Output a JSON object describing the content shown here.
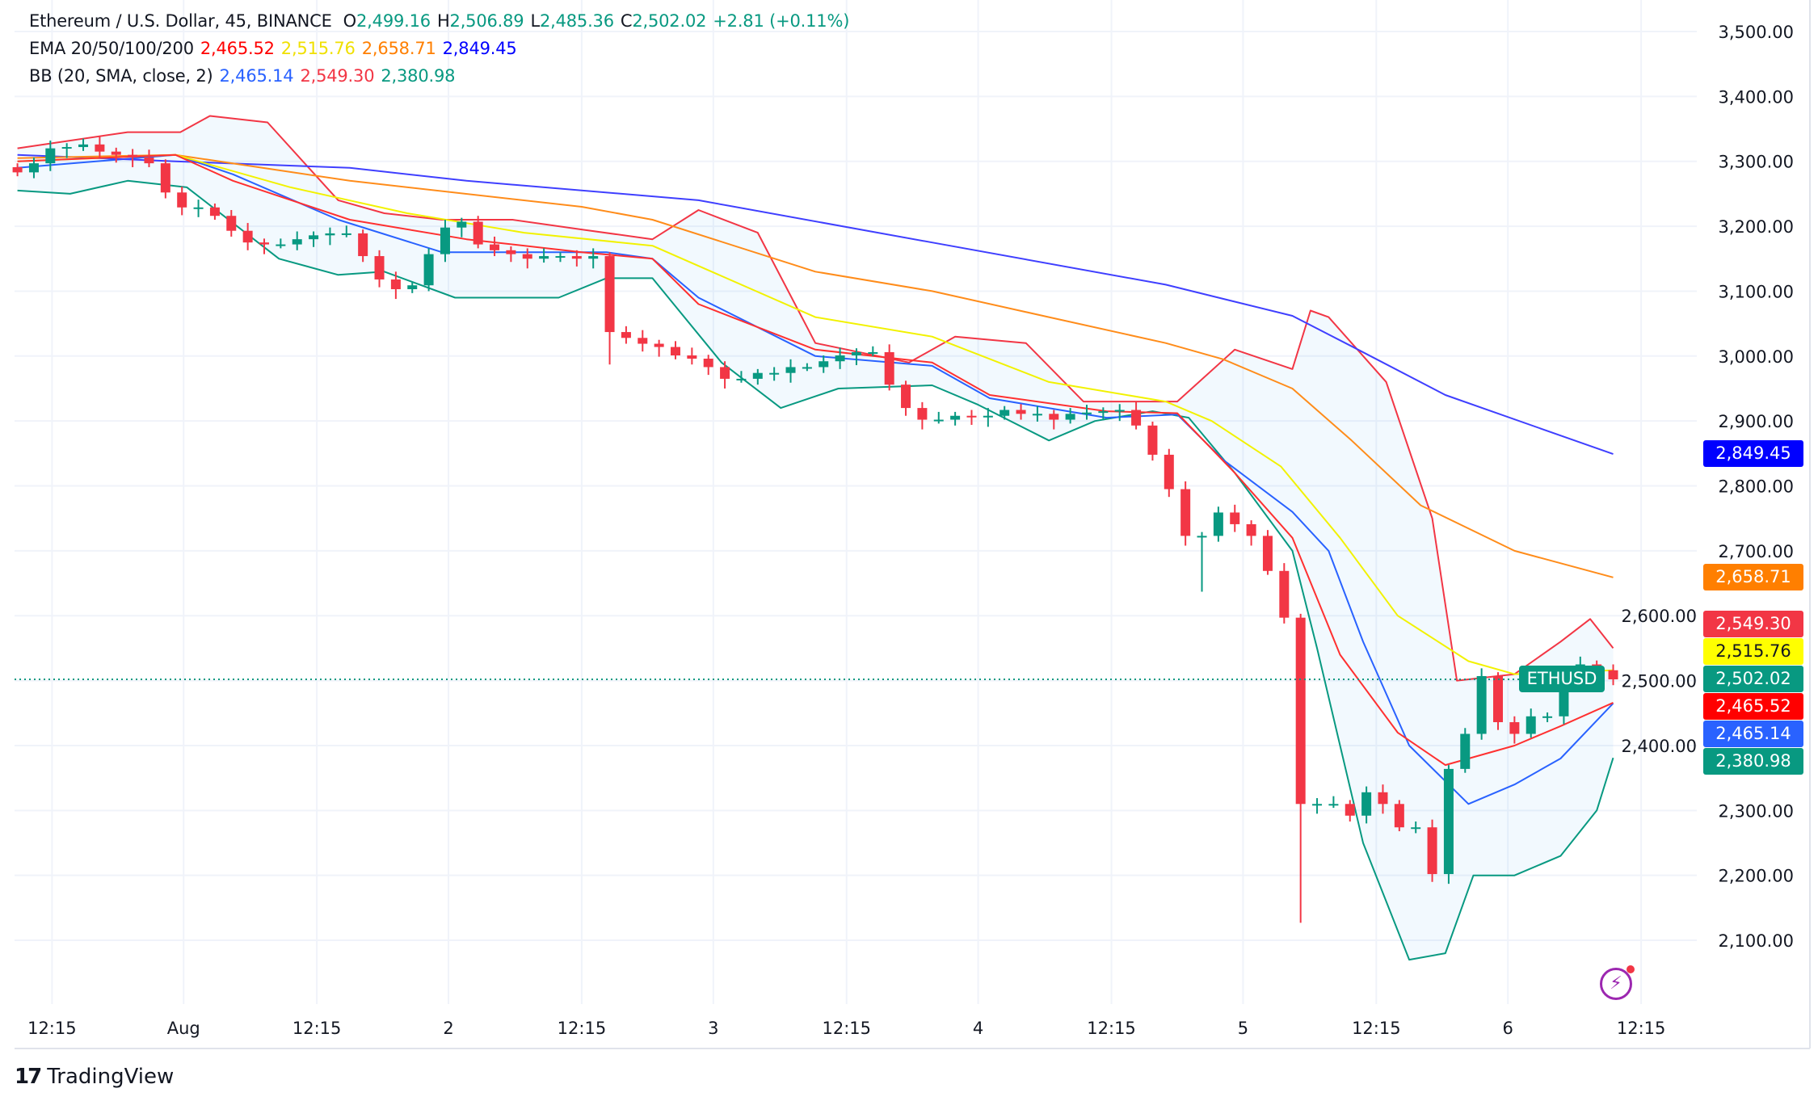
{
  "legend": {
    "title": "Ethereum / U.S. Dollar, 45, BINANCE",
    "o_label": "O",
    "o": "2,499.16",
    "h_label": "H",
    "h": "2,506.89",
    "l_label": "L",
    "l": "2,485.36",
    "c_label": "C",
    "c": "2,502.02",
    "change": "+2.81 (+0.11%)",
    "ema_label": "EMA 20/50/100/200",
    "ema20": "2,465.52",
    "ema50": "2,515.76",
    "ema100": "2,658.71",
    "ema200": "2,849.45",
    "bb_label": "BB (20, SMA, close, 2)",
    "bb_basis": "2,465.14",
    "bb_upper": "2,549.30",
    "bb_lower": "2,380.98"
  },
  "badges": {
    "ema200": "2,849.45",
    "ema100": "2,658.71",
    "bb_upper": "2,549.30",
    "ema50": "2,515.76",
    "last": "2,502.02",
    "ema20": "2,465.52",
    "bb_basis": "2,465.14",
    "bb_lower": "2,380.98",
    "symbol": "ETHUSD"
  },
  "colors": {
    "up": "#089981",
    "down": "#f23645",
    "ema20": "#ff0000",
    "ema50": "#ffff00",
    "ema100": "#ff7f00",
    "ema200": "#0000ff",
    "bb_basis": "#2962ff",
    "bb_upper": "#f23645",
    "bb_lower": "#089981"
  },
  "brand": "TradingView",
  "chart_data": {
    "type": "candlestick",
    "title": "Ethereum / U.S. Dollar, 45, BINANCE",
    "ylim": [
      2040,
      3540
    ],
    "y_ticks": [
      3500,
      3400,
      3300,
      3200,
      3100,
      3000,
      2900,
      2800,
      2700,
      2600,
      2500,
      2400,
      2300,
      2200,
      2100
    ],
    "y_tick_labels": [
      "3,500.00",
      "3,400.00",
      "3,300.00",
      "3,200.00",
      "3,100.00",
      "3,000.00",
      "2,900.00",
      "2,800.00",
      "2,700.00",
      "2,600.00",
      "2,500.00",
      "2,400.00",
      "2,300.00",
      "2,200.00",
      "2,100.00"
    ],
    "x_ticks": [
      {
        "bar": 2.1,
        "label": "12:15"
      },
      {
        "bar": 10.1,
        "label": "Aug"
      },
      {
        "bar": 18.2,
        "label": "12:15"
      },
      {
        "bar": 26.2,
        "label": "2"
      },
      {
        "bar": 34.3,
        "label": "12:15"
      },
      {
        "bar": 42.3,
        "label": "3"
      },
      {
        "bar": 50.4,
        "label": "12:15"
      },
      {
        "bar": 58.4,
        "label": "4"
      },
      {
        "bar": 66.5,
        "label": "12:15"
      },
      {
        "bar": 74.5,
        "label": "5"
      },
      {
        "bar": 82.6,
        "label": "12:15"
      },
      {
        "bar": 90.6,
        "label": "6"
      },
      {
        "bar": 98.7,
        "label": "12:15"
      }
    ],
    "closes": [
      3283,
      3297,
      3320,
      3322,
      3326,
      3315,
      3310,
      3306,
      3297,
      3252,
      3229,
      3229,
      3216,
      3193,
      3175,
      3172,
      3172,
      3180,
      3186,
      3189,
      3189,
      3154,
      3118,
      3103,
      3109,
      3157,
      3198,
      3207,
      3172,
      3163,
      3157,
      3150,
      3154,
      3154,
      3150,
      3154,
      3037,
      3028,
      3019,
      3014,
      3001,
      2996,
      2983,
      2965,
      2965,
      2974,
      2974,
      2983,
      2983,
      2992,
      3001,
      3006,
      3006,
      2956,
      2920,
      2902,
      2902,
      2908,
      2906,
      2908,
      2917,
      2911,
      2911,
      2902,
      2911,
      2913,
      2915,
      2917,
      2893,
      2848,
      2795,
      2723,
      2723,
      2759,
      2741,
      2723,
      2669,
      2597,
      2310,
      2310,
      2310,
      2292,
      2328,
      2310,
      2274,
      2274,
      2202,
      2364,
      2418,
      2507,
      2436,
      2418,
      2445,
      2445,
      2498,
      2525,
      2516,
      2502
    ],
    "spike_lows": [
      {
        "bar": 36,
        "low": 2987
      },
      {
        "bar": 72,
        "low": 2637
      },
      {
        "bar": 78,
        "low": 2127
      },
      {
        "bar": 86,
        "low": 2190
      }
    ],
    "last_price": 2502.02,
    "series": [
      {
        "name": "BB Upper",
        "color": "#f23645",
        "points": [
          [
            0,
            3320
          ],
          [
            6.7,
            3345
          ],
          [
            9.9,
            3345
          ],
          [
            11.7,
            3370
          ],
          [
            15.2,
            3360
          ],
          [
            19.5,
            3240
          ],
          [
            22.3,
            3220
          ],
          [
            25.8,
            3210
          ],
          [
            30.1,
            3210
          ],
          [
            34.3,
            3195
          ],
          [
            38.6,
            3180
          ],
          [
            41.4,
            3225
          ],
          [
            45,
            3190
          ],
          [
            48.5,
            3020
          ],
          [
            54.2,
            2990
          ],
          [
            57,
            3030
          ],
          [
            61.3,
            3020
          ],
          [
            64.8,
            2930
          ],
          [
            70.5,
            2930
          ],
          [
            74,
            3010
          ],
          [
            77.5,
            2980
          ],
          [
            78.6,
            3070
          ],
          [
            79.7,
            3060
          ],
          [
            83.2,
            2960
          ],
          [
            86,
            2750
          ],
          [
            87.5,
            2500
          ],
          [
            91,
            2510
          ],
          [
            93.8,
            2560
          ],
          [
            95.6,
            2595
          ],
          [
            97,
            2550
          ]
        ]
      },
      {
        "name": "BB Lower",
        "color": "#089981",
        "points": [
          [
            0,
            3255
          ],
          [
            3.2,
            3250
          ],
          [
            6.7,
            3270
          ],
          [
            10.3,
            3260
          ],
          [
            15.9,
            3150
          ],
          [
            19.5,
            3125
          ],
          [
            22.3,
            3130
          ],
          [
            26.6,
            3090
          ],
          [
            32.9,
            3090
          ],
          [
            35.8,
            3120
          ],
          [
            38.6,
            3120
          ],
          [
            42.8,
            2990
          ],
          [
            46.4,
            2920
          ],
          [
            49.9,
            2950
          ],
          [
            55.6,
            2955
          ],
          [
            58.4,
            2925
          ],
          [
            62.7,
            2870
          ],
          [
            65.5,
            2900
          ],
          [
            69,
            2915
          ],
          [
            71.2,
            2905
          ],
          [
            74,
            2820
          ],
          [
            77.5,
            2700
          ],
          [
            79,
            2550
          ],
          [
            81.8,
            2250
          ],
          [
            84.6,
            2070
          ],
          [
            86.8,
            2080
          ],
          [
            88.5,
            2200
          ],
          [
            91,
            2200
          ],
          [
            93.8,
            2230
          ],
          [
            96,
            2300
          ],
          [
            97,
            2381
          ]
        ]
      },
      {
        "name": "BB Basis",
        "color": "#2962ff",
        "points": [
          [
            0,
            3290
          ],
          [
            9.6,
            3310
          ],
          [
            13.1,
            3280
          ],
          [
            19.5,
            3210
          ],
          [
            25.8,
            3160
          ],
          [
            30.8,
            3160
          ],
          [
            35.8,
            3160
          ],
          [
            38.6,
            3150
          ],
          [
            41.4,
            3090
          ],
          [
            48.5,
            3000
          ],
          [
            55.6,
            2985
          ],
          [
            59.1,
            2935
          ],
          [
            66.2,
            2905
          ],
          [
            70.5,
            2910
          ],
          [
            73.3,
            2840
          ],
          [
            77.5,
            2760
          ],
          [
            79.7,
            2700
          ],
          [
            81.8,
            2560
          ],
          [
            84.6,
            2400
          ],
          [
            88.2,
            2310
          ],
          [
            91,
            2340
          ],
          [
            93.8,
            2380
          ],
          [
            97,
            2465
          ]
        ]
      },
      {
        "name": "EMA 200",
        "color": "#3f3fff",
        "points": [
          [
            0,
            3310
          ],
          [
            9.6,
            3300
          ],
          [
            20.2,
            3290
          ],
          [
            27.3,
            3270
          ],
          [
            41.4,
            3240
          ],
          [
            55.6,
            3175
          ],
          [
            69.8,
            3110
          ],
          [
            77.5,
            3062
          ],
          [
            81.1,
            3015
          ],
          [
            86.8,
            2940
          ],
          [
            97,
            2849
          ]
        ]
      },
      {
        "name": "EMA 100",
        "color": "#ff8c1a",
        "points": [
          [
            0,
            3305
          ],
          [
            9.6,
            3310
          ],
          [
            20.2,
            3270
          ],
          [
            34.3,
            3230
          ],
          [
            38.6,
            3210
          ],
          [
            48.5,
            3130
          ],
          [
            55.6,
            3100
          ],
          [
            62.7,
            3060
          ],
          [
            69.8,
            3020
          ],
          [
            73.3,
            2995
          ],
          [
            77.5,
            2950
          ],
          [
            81.1,
            2870
          ],
          [
            85.3,
            2770
          ],
          [
            91,
            2700
          ],
          [
            97,
            2659
          ]
        ]
      },
      {
        "name": "EMA 50",
        "color": "#f2f200",
        "points": [
          [
            0,
            3300
          ],
          [
            9.6,
            3310
          ],
          [
            16.6,
            3260
          ],
          [
            23.7,
            3220
          ],
          [
            30.8,
            3190
          ],
          [
            38.6,
            3170
          ],
          [
            48.5,
            3060
          ],
          [
            55.6,
            3030
          ],
          [
            62.7,
            2960
          ],
          [
            69.8,
            2930
          ],
          [
            72.6,
            2900
          ],
          [
            76.8,
            2830
          ],
          [
            80.4,
            2720
          ],
          [
            83.9,
            2600
          ],
          [
            88.2,
            2530
          ],
          [
            91,
            2510
          ],
          [
            97,
            2516
          ]
        ]
      },
      {
        "name": "EMA 20",
        "color": "#ff3030",
        "points": [
          [
            0,
            3300
          ],
          [
            9.6,
            3310
          ],
          [
            13.1,
            3270
          ],
          [
            20.2,
            3210
          ],
          [
            27.3,
            3180
          ],
          [
            34.3,
            3160
          ],
          [
            38.6,
            3150
          ],
          [
            41.4,
            3080
          ],
          [
            48.5,
            3010
          ],
          [
            55.6,
            2990
          ],
          [
            59.1,
            2940
          ],
          [
            66.2,
            2915
          ],
          [
            70.5,
            2912
          ],
          [
            74,
            2820
          ],
          [
            77.5,
            2720
          ],
          [
            80.4,
            2540
          ],
          [
            83.9,
            2420
          ],
          [
            86.8,
            2370
          ],
          [
            91,
            2400
          ],
          [
            93.8,
            2430
          ],
          [
            97,
            2466
          ]
        ]
      }
    ]
  }
}
